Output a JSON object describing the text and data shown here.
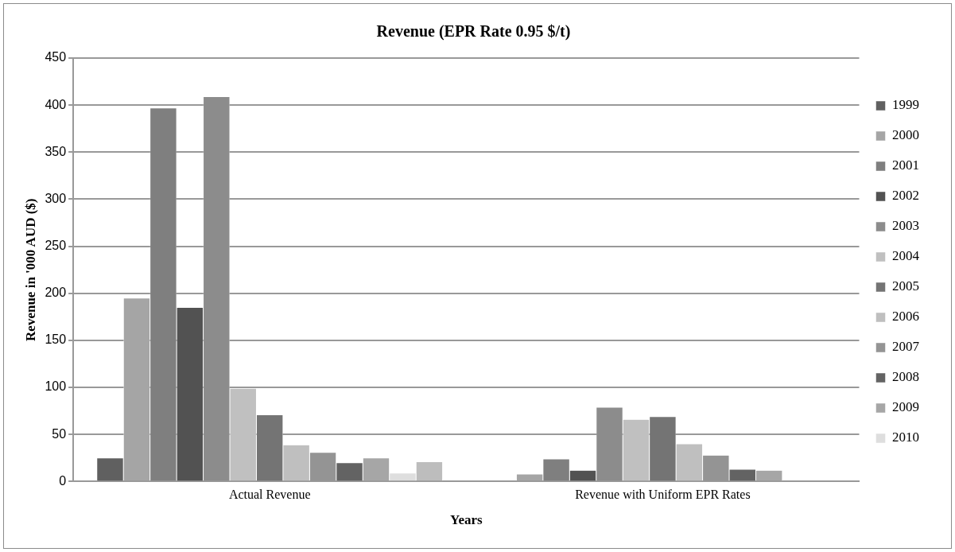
{
  "chart_data": {
    "type": "bar",
    "title": "Revenue (EPR Rate 0.95 $/t)",
    "xlabel": "Years",
    "ylabel": "Revenue in '000 AUD ($)",
    "categories": [
      "Actual Revenue",
      "Revenue with Uniform EPR Rates"
    ],
    "ylim": [
      0,
      450
    ],
    "yticks": [
      0,
      50,
      100,
      150,
      200,
      250,
      300,
      350,
      400,
      450
    ],
    "grid": "y",
    "legend": "right",
    "series": [
      {
        "name": "1999",
        "color": "#606060",
        "values": [
          25,
          0
        ]
      },
      {
        "name": "2000",
        "color": "#a5a5a5",
        "values": [
          195,
          8
        ]
      },
      {
        "name": "2001",
        "color": "#7f7f7f",
        "values": [
          397,
          24
        ]
      },
      {
        "name": "2002",
        "color": "#525252",
        "values": [
          185,
          12
        ]
      },
      {
        "name": "2003",
        "color": "#8c8c8c",
        "values": [
          409,
          79
        ]
      },
      {
        "name": "2004",
        "color": "#c0c0c0",
        "values": [
          99,
          66
        ]
      },
      {
        "name": "2005",
        "color": "#747474",
        "values": [
          71,
          69
        ]
      },
      {
        "name": "2006",
        "color": "#bfbfbf",
        "values": [
          39,
          40
        ]
      },
      {
        "name": "2007",
        "color": "#949494",
        "values": [
          31,
          28
        ]
      },
      {
        "name": "2008",
        "color": "#636363",
        "values": [
          20,
          13
        ]
      },
      {
        "name": "2009",
        "color": "#a6a6a6",
        "values": [
          25,
          12
        ]
      },
      {
        "name": "2010",
        "color": "#dedede",
        "values": [
          9,
          0
        ]
      },
      {
        "color": "#bdbdbd",
        "values": [
          21,
          0
        ]
      }
    ]
  }
}
